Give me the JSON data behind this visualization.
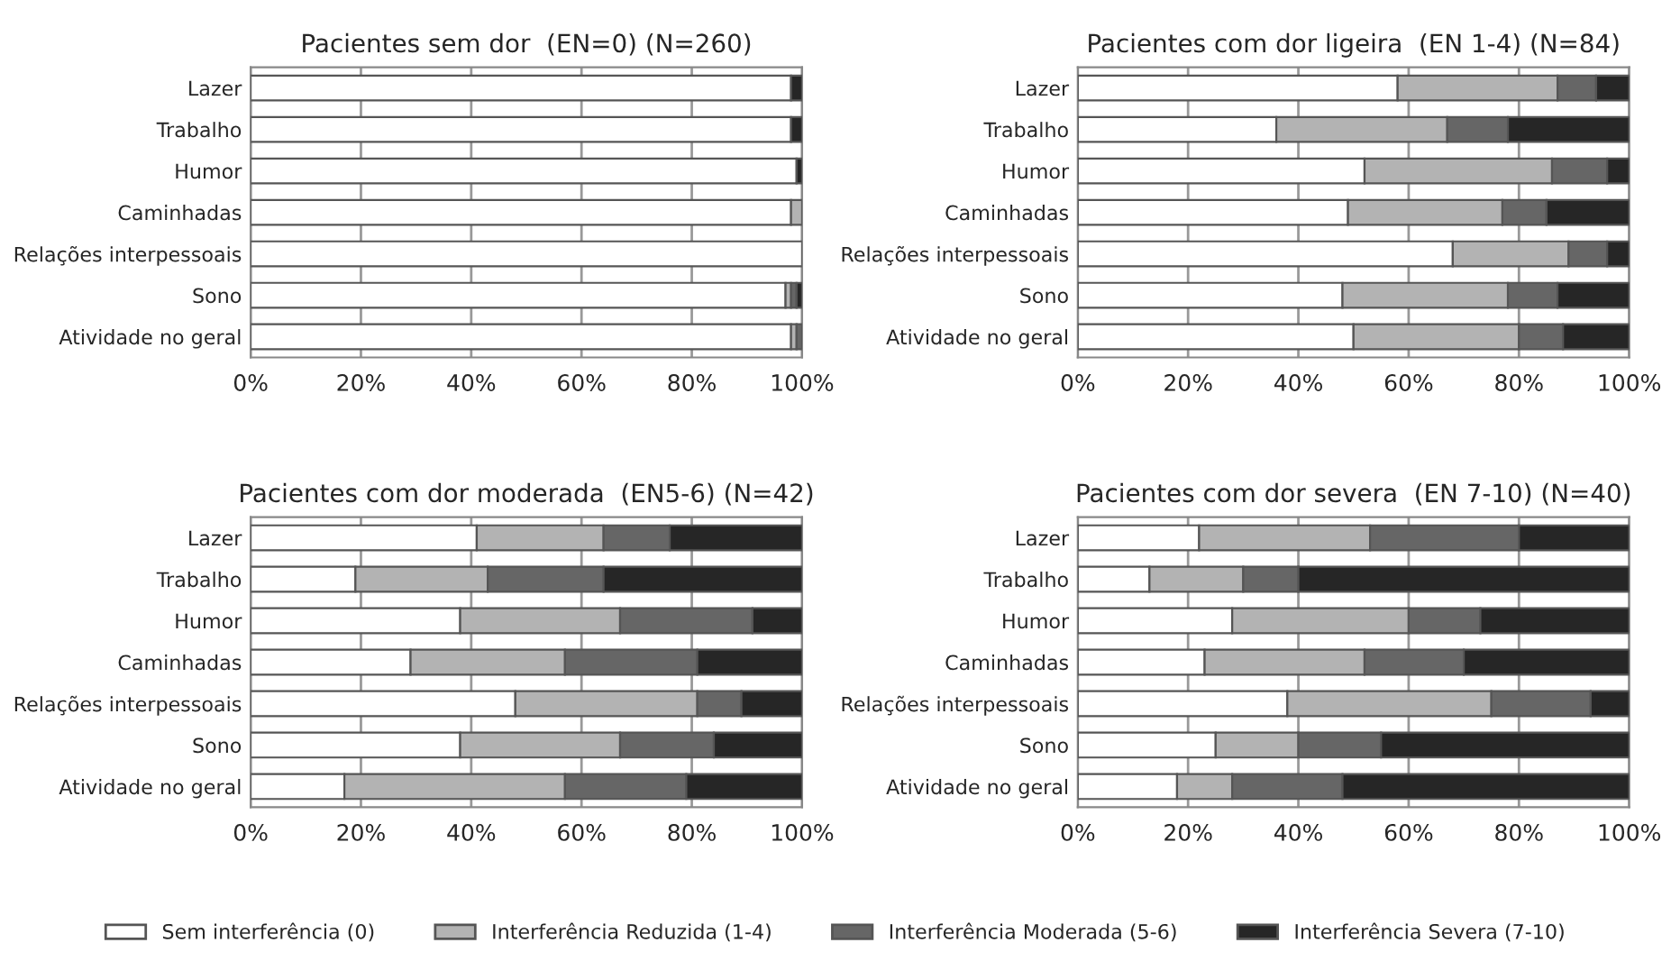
{
  "chart_data": [
    {
      "type": "bar",
      "orientation": "horizontal",
      "stacked": true,
      "title": "Pacientes sem dor  (EN=0) (N=260)",
      "categories": [
        "Lazer",
        "Trabalho",
        "Humor",
        "Caminhadas",
        "Relações interpessoais",
        "Sono",
        "Atividade no geral"
      ],
      "series": [
        {
          "name": "Sem interferência (0)",
          "color": "#ffffff",
          "values": [
            98,
            98,
            99,
            98,
            100,
            97,
            98
          ]
        },
        {
          "name": "Interferência Reduzida (1-4)",
          "color": "#b3b3b3",
          "values": [
            0,
            0,
            0,
            2,
            0,
            1,
            1
          ]
        },
        {
          "name": "Interferência Moderada (5-6)",
          "color": "#666666",
          "values": [
            0,
            0,
            0,
            0,
            0,
            1,
            1
          ]
        },
        {
          "name": "Interferência Severa (7-10)",
          "color": "#262626",
          "values": [
            2,
            2,
            1,
            0,
            0,
            1,
            0
          ]
        }
      ],
      "xlim": [
        0,
        100
      ],
      "xticks": [
        {
          "value": 0,
          "label": "0%"
        },
        {
          "value": 20,
          "label": "20%"
        },
        {
          "value": 40,
          "label": "40%"
        },
        {
          "value": 60,
          "label": "60%"
        },
        {
          "value": 80,
          "label": "80%"
        },
        {
          "value": 100,
          "label": "100%"
        }
      ],
      "grid": "x",
      "legend": "bottom"
    },
    {
      "type": "bar",
      "orientation": "horizontal",
      "stacked": true,
      "title": "Pacientes com dor ligeira  (EN 1-4) (N=84)",
      "categories": [
        "Lazer",
        "Trabalho",
        "Humor",
        "Caminhadas",
        "Relações interpessoais",
        "Sono",
        "Atividade no geral"
      ],
      "series": [
        {
          "name": "Sem interferência (0)",
          "color": "#ffffff",
          "values": [
            58,
            36,
            52,
            49,
            68,
            48,
            50
          ]
        },
        {
          "name": "Interferência Reduzida (1-4)",
          "color": "#b3b3b3",
          "values": [
            29,
            31,
            34,
            28,
            21,
            30,
            30
          ]
        },
        {
          "name": "Interferência Moderada (5-6)",
          "color": "#666666",
          "values": [
            7,
            11,
            10,
            8,
            7,
            9,
            8
          ]
        },
        {
          "name": "Interferência Severa (7-10)",
          "color": "#262626",
          "values": [
            6,
            22,
            4,
            15,
            4,
            13,
            12
          ]
        }
      ],
      "xlim": [
        0,
        100
      ],
      "xticks": [
        {
          "value": 0,
          "label": "0%"
        },
        {
          "value": 20,
          "label": "20%"
        },
        {
          "value": 40,
          "label": "40%"
        },
        {
          "value": 60,
          "label": "60%"
        },
        {
          "value": 80,
          "label": "80%"
        },
        {
          "value": 100,
          "label": "100%"
        }
      ],
      "grid": "x",
      "legend": "bottom"
    },
    {
      "type": "bar",
      "orientation": "horizontal",
      "stacked": true,
      "title": "Pacientes com dor moderada  (EN5-6) (N=42)",
      "categories": [
        "Lazer",
        "Trabalho",
        "Humor",
        "Caminhadas",
        "Relações interpessoais",
        "Sono",
        "Atividade no geral"
      ],
      "series": [
        {
          "name": "Sem interferência (0)",
          "color": "#ffffff",
          "values": [
            41,
            19,
            38,
            29,
            48,
            38,
            17
          ]
        },
        {
          "name": "Interferência Reduzida (1-4)",
          "color": "#b3b3b3",
          "values": [
            23,
            24,
            29,
            28,
            33,
            29,
            40
          ]
        },
        {
          "name": "Interferência Moderada (5-6)",
          "color": "#666666",
          "values": [
            12,
            21,
            24,
            24,
            8,
            17,
            22
          ]
        },
        {
          "name": "Interferência Severa (7-10)",
          "color": "#262626",
          "values": [
            24,
            36,
            9,
            19,
            11,
            16,
            21
          ]
        }
      ],
      "xlim": [
        0,
        100
      ],
      "xticks": [
        {
          "value": 0,
          "label": "0%"
        },
        {
          "value": 20,
          "label": "20%"
        },
        {
          "value": 40,
          "label": "40%"
        },
        {
          "value": 60,
          "label": "60%"
        },
        {
          "value": 80,
          "label": "80%"
        },
        {
          "value": 100,
          "label": "100%"
        }
      ],
      "grid": "x",
      "legend": "bottom"
    },
    {
      "type": "bar",
      "orientation": "horizontal",
      "stacked": true,
      "title": "Pacientes com dor severa  (EN 7-10) (N=40)",
      "categories": [
        "Lazer",
        "Trabalho",
        "Humor",
        "Caminhadas",
        "Relações interpessoais",
        "Sono",
        "Atividade no geral"
      ],
      "series": [
        {
          "name": "Sem interferência (0)",
          "color": "#ffffff",
          "values": [
            22,
            13,
            28,
            23,
            38,
            25,
            18
          ]
        },
        {
          "name": "Interferência Reduzida (1-4)",
          "color": "#b3b3b3",
          "values": [
            31,
            17,
            32,
            29,
            37,
            15,
            10
          ]
        },
        {
          "name": "Interferência Moderada (5-6)",
          "color": "#666666",
          "values": [
            27,
            10,
            13,
            18,
            18,
            15,
            20
          ]
        },
        {
          "name": "Interferência Severa (7-10)",
          "color": "#262626",
          "values": [
            20,
            60,
            27,
            30,
            7,
            45,
            52
          ]
        }
      ],
      "xlim": [
        0,
        100
      ],
      "xticks": [
        {
          "value": 0,
          "label": "0%"
        },
        {
          "value": 20,
          "label": "20%"
        },
        {
          "value": 40,
          "label": "40%"
        },
        {
          "value": 60,
          "label": "60%"
        },
        {
          "value": 80,
          "label": "80%"
        },
        {
          "value": 100,
          "label": "100%"
        }
      ],
      "grid": "x",
      "legend": "bottom"
    }
  ]
}
